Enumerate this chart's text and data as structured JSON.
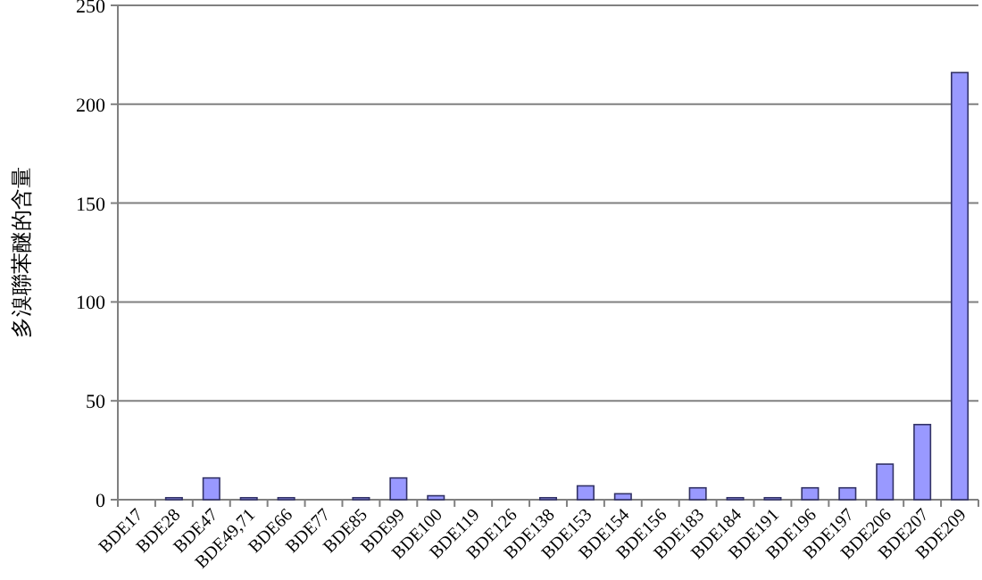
{
  "chart_data": {
    "type": "bar",
    "ylabel": "多溴聯苯醚的含量",
    "categories": [
      "BDE17",
      "BDE28",
      "BDE47",
      "BDE49,71",
      "BDE66",
      "BDE77",
      "BDE85",
      "BDE99",
      "BDE100",
      "BDE119",
      "BDE126",
      "BDE138",
      "BDE153",
      "BDE154",
      "BDE156",
      "BDE183",
      "BDE184",
      "BDE191",
      "BDE196",
      "BDE197",
      "BDE206",
      "BDE207",
      "BDE209"
    ],
    "values": [
      0,
      1,
      11,
      1,
      1,
      0,
      1,
      11,
      2,
      0,
      0,
      1,
      7,
      3,
      0,
      6,
      1,
      1,
      6,
      6,
      18,
      38,
      216
    ],
    "color": "#9999ff",
    "ylim": [
      0,
      250
    ],
    "yticks": [
      0,
      50,
      100,
      150,
      200,
      250
    ],
    "grid": "y"
  }
}
